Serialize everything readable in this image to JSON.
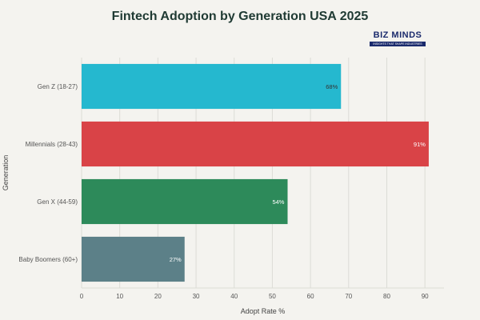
{
  "chart_data": {
    "type": "bar",
    "orientation": "horizontal",
    "title": "Fintech Adoption by Generation USA 2025",
    "xlabel": "Adopt Rate %",
    "ylabel": "Generation",
    "xlim": [
      0,
      95
    ],
    "xticks": [
      0,
      10,
      20,
      30,
      40,
      50,
      60,
      70,
      80,
      90
    ],
    "grid": true,
    "categories": [
      "Gen Z (18-27)",
      "Millennials (28-43)",
      "Gen X (44-59)",
      "Baby Boomers (60+)"
    ],
    "values": [
      68,
      91,
      54,
      27
    ],
    "data_labels": [
      "68%",
      "91%",
      "54%",
      "27%"
    ],
    "colors": [
      "#25b8cf",
      "#d94347",
      "#2d8a5a",
      "#5c8088"
    ],
    "label_colors": [
      "#333333",
      "#ffffff",
      "#ffffff",
      "#ffffff"
    ]
  },
  "logo": {
    "text": "BIZ MINDS",
    "tagline": "INSIGHTS THAT SHAPE INDUSTRIES"
  }
}
